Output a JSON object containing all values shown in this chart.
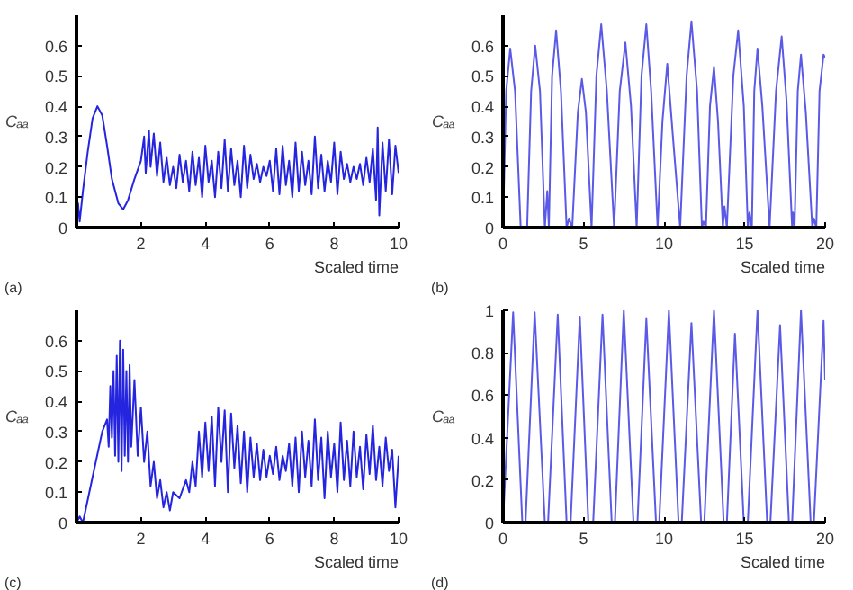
{
  "chart_data": [
    {
      "type": "line",
      "xlabel": "Scaled time",
      "ylabel": "Cₐₐ",
      "annotations": [
        "(a)"
      ],
      "xlim": [
        0,
        10
      ],
      "ylim": [
        0,
        0.7
      ],
      "xticks": [
        2,
        4,
        6,
        8,
        10
      ],
      "yticks": [
        0,
        0.1,
        0.2,
        0.3,
        0.4,
        0.5,
        0.6
      ],
      "grid": false,
      "x": [
        0,
        0.05,
        0.1,
        0.2,
        0.35,
        0.5,
        0.65,
        0.8,
        0.95,
        1.1,
        1.3,
        1.45,
        1.6,
        1.8,
        2.0,
        2.1,
        2.15,
        2.25,
        2.3,
        2.4,
        2.5,
        2.6,
        2.7,
        2.8,
        2.9,
        3.0,
        3.1,
        3.2,
        3.3,
        3.4,
        3.5,
        3.6,
        3.7,
        3.8,
        3.9,
        4.0,
        4.1,
        4.2,
        4.3,
        4.4,
        4.5,
        4.6,
        4.7,
        4.8,
        4.9,
        5.0,
        5.1,
        5.2,
        5.3,
        5.4,
        5.5,
        5.6,
        5.7,
        5.8,
        5.9,
        6.0,
        6.1,
        6.2,
        6.3,
        6.4,
        6.5,
        6.6,
        6.7,
        6.8,
        6.9,
        7.0,
        7.1,
        7.2,
        7.3,
        7.4,
        7.5,
        7.6,
        7.7,
        7.8,
        7.9,
        8.0,
        8.1,
        8.2,
        8.3,
        8.4,
        8.5,
        8.6,
        8.7,
        8.8,
        8.9,
        9.0,
        9.1,
        9.2,
        9.3,
        9.35,
        9.4,
        9.5,
        9.6,
        9.7,
        9.8,
        9.9,
        10.0
      ],
      "series": [
        {
          "color": "#2525e0",
          "values": [
            0,
            0.08,
            0.02,
            0.12,
            0.25,
            0.36,
            0.4,
            0.37,
            0.27,
            0.16,
            0.08,
            0.06,
            0.09,
            0.16,
            0.22,
            0.3,
            0.18,
            0.32,
            0.2,
            0.31,
            0.17,
            0.28,
            0.15,
            0.23,
            0.14,
            0.2,
            0.13,
            0.24,
            0.15,
            0.22,
            0.12,
            0.25,
            0.14,
            0.23,
            0.1,
            0.27,
            0.15,
            0.22,
            0.1,
            0.25,
            0.13,
            0.29,
            0.12,
            0.26,
            0.14,
            0.22,
            0.1,
            0.27,
            0.13,
            0.24,
            0.16,
            0.21,
            0.15,
            0.2,
            0.17,
            0.22,
            0.12,
            0.26,
            0.11,
            0.27,
            0.14,
            0.22,
            0.1,
            0.28,
            0.12,
            0.25,
            0.14,
            0.22,
            0.11,
            0.3,
            0.13,
            0.24,
            0.12,
            0.22,
            0.15,
            0.28,
            0.11,
            0.25,
            0.16,
            0.21,
            0.15,
            0.2,
            0.16,
            0.21,
            0.14,
            0.23,
            0.15,
            0.26,
            0.09,
            0.33,
            0.04,
            0.28,
            0.12,
            0.29,
            0.11,
            0.27,
            0.18
          ]
        }
      ]
    },
    {
      "type": "line",
      "xlabel": "Scaled time",
      "ylabel": "Cₐₐ",
      "annotations": [
        "(b)"
      ],
      "xlim": [
        0,
        20
      ],
      "ylim": [
        0,
        0.7
      ],
      "xticks": [
        0,
        5,
        10,
        15,
        20
      ],
      "yticks": [
        0,
        0.1,
        0.2,
        0.3,
        0.4,
        0.5,
        0.6
      ],
      "grid": false,
      "x": [
        0,
        0.2,
        0.45,
        0.75,
        1.1,
        1.5,
        1.75,
        2.0,
        2.3,
        2.6,
        2.75,
        2.85,
        3.05,
        3.3,
        3.6,
        3.95,
        4.1,
        4.3,
        4.65,
        4.9,
        5.15,
        5.5,
        5.8,
        6.1,
        6.45,
        6.9,
        7.25,
        7.6,
        7.95,
        8.3,
        8.6,
        8.9,
        9.2,
        9.6,
        9.9,
        10.2,
        10.55,
        11.0,
        11.4,
        11.7,
        12.05,
        12.35,
        12.45,
        12.6,
        12.85,
        13.1,
        13.35,
        13.65,
        13.75,
        13.9,
        14.3,
        14.6,
        14.95,
        15.2,
        15.3,
        15.45,
        15.6,
        15.8,
        16.1,
        16.55,
        16.95,
        17.3,
        17.6,
        17.95,
        18.0,
        18.1,
        18.3,
        18.5,
        18.8,
        19.2,
        19.3,
        19.45,
        19.65,
        19.9,
        20
      ],
      "series": [
        {
          "color": "#5a5ae6",
          "values": [
            0,
            0.45,
            0.59,
            0.45,
            0,
            0,
            0.45,
            0.6,
            0.45,
            0,
            0.12,
            0,
            0.5,
            0.65,
            0.45,
            0,
            0.03,
            0,
            0.38,
            0.49,
            0.38,
            0,
            0.5,
            0.67,
            0.45,
            0,
            0.45,
            0.61,
            0.4,
            0,
            0.5,
            0.67,
            0.45,
            0,
            0.35,
            0.54,
            0.3,
            0,
            0.5,
            0.68,
            0.45,
            0,
            0.02,
            0,
            0.4,
            0.53,
            0.35,
            0,
            0.07,
            0,
            0.5,
            0.65,
            0.4,
            0,
            0.05,
            0,
            0.45,
            0.59,
            0.4,
            0,
            0.45,
            0.63,
            0.42,
            0,
            0.05,
            0,
            0.45,
            0.57,
            0.38,
            0,
            0.03,
            0,
            0.45,
            0.57,
            0.56
          ]
        }
      ]
    },
    {
      "type": "line",
      "xlabel": "Scaled time",
      "ylabel": "Cₐₐ",
      "annotations": [
        "(c)"
      ],
      "xlim": [
        0,
        10
      ],
      "ylim": [
        0,
        0.7
      ],
      "xticks": [
        2,
        4,
        6,
        8,
        10
      ],
      "yticks": [
        0,
        0.1,
        0.2,
        0.3,
        0.4,
        0.5,
        0.6
      ],
      "grid": false,
      "x": [
        0,
        0.1,
        0.2,
        0.4,
        0.6,
        0.8,
        0.95,
        1.0,
        1.05,
        1.1,
        1.15,
        1.2,
        1.25,
        1.3,
        1.35,
        1.4,
        1.45,
        1.5,
        1.55,
        1.6,
        1.65,
        1.7,
        1.8,
        1.9,
        2.0,
        2.1,
        2.2,
        2.3,
        2.4,
        2.5,
        2.6,
        2.7,
        2.8,
        2.9,
        3.0,
        3.2,
        3.4,
        3.5,
        3.6,
        3.7,
        3.8,
        3.9,
        4.0,
        4.1,
        4.2,
        4.3,
        4.4,
        4.5,
        4.6,
        4.7,
        4.8,
        4.9,
        5.0,
        5.1,
        5.2,
        5.3,
        5.4,
        5.5,
        5.6,
        5.7,
        5.8,
        5.9,
        6.0,
        6.1,
        6.2,
        6.3,
        6.4,
        6.5,
        6.6,
        6.7,
        6.8,
        6.9,
        7.0,
        7.1,
        7.2,
        7.3,
        7.4,
        7.5,
        7.6,
        7.7,
        7.8,
        7.9,
        8.0,
        8.1,
        8.2,
        8.3,
        8.4,
        8.5,
        8.6,
        8.7,
        8.8,
        8.9,
        9.0,
        9.1,
        9.2,
        9.3,
        9.4,
        9.5,
        9.6,
        9.7,
        9.8,
        9.9,
        10.0
      ],
      "series": [
        {
          "color": "#2525e0",
          "values": [
            0,
            0.02,
            0,
            0.1,
            0.2,
            0.3,
            0.34,
            0.25,
            0.45,
            0.28,
            0.5,
            0.22,
            0.55,
            0.2,
            0.6,
            0.17,
            0.57,
            0.22,
            0.5,
            0.2,
            0.52,
            0.25,
            0.47,
            0.22,
            0.38,
            0.2,
            0.3,
            0.12,
            0.2,
            0.08,
            0.14,
            0.05,
            0.1,
            0.04,
            0.1,
            0.08,
            0.14,
            0.1,
            0.2,
            0.12,
            0.3,
            0.15,
            0.33,
            0.17,
            0.35,
            0.12,
            0.38,
            0.2,
            0.37,
            0.1,
            0.36,
            0.18,
            0.32,
            0.13,
            0.3,
            0.1,
            0.28,
            0.15,
            0.26,
            0.14,
            0.24,
            0.15,
            0.22,
            0.16,
            0.25,
            0.14,
            0.22,
            0.17,
            0.26,
            0.12,
            0.28,
            0.1,
            0.3,
            0.15,
            0.27,
            0.12,
            0.34,
            0.14,
            0.28,
            0.08,
            0.3,
            0.15,
            0.26,
            0.1,
            0.33,
            0.14,
            0.27,
            0.12,
            0.3,
            0.15,
            0.25,
            0.11,
            0.29,
            0.16,
            0.32,
            0.14,
            0.25,
            0.12,
            0.28,
            0.17,
            0.24,
            0.05,
            0.22
          ]
        }
      ]
    },
    {
      "type": "line",
      "xlabel": "Scaled time",
      "ylabel": "Cₐₐ",
      "annotations": [
        "(d)"
      ],
      "xlim": [
        0,
        20
      ],
      "ylim": [
        0,
        1
      ],
      "xticks": [
        0,
        5,
        10,
        15,
        20
      ],
      "yticks": [
        0,
        0.2,
        0.4,
        0.6,
        0.8,
        1
      ],
      "grid": false,
      "x": [
        0,
        0.63,
        1.2,
        1.4,
        1.97,
        2.6,
        2.8,
        3.4,
        3.95,
        4.2,
        4.77,
        5.3,
        5.6,
        6.18,
        6.75,
        6.95,
        7.5,
        8.1,
        8.35,
        8.9,
        9.5,
        9.7,
        10.3,
        10.9,
        11.1,
        11.7,
        12.3,
        12.5,
        13.1,
        13.7,
        13.9,
        14.4,
        14.95,
        15.2,
        15.8,
        16.4,
        16.6,
        17.2,
        17.75,
        17.95,
        18.5,
        19.1,
        19.3,
        19.9,
        20
      ],
      "series": [
        {
          "color": "#5a5ae6",
          "values": [
            0,
            0.99,
            0,
            0,
            0.99,
            0,
            0,
            0.98,
            0,
            0,
            0.97,
            0,
            0,
            0.98,
            0,
            0,
            1.0,
            0,
            0,
            0.96,
            0,
            0,
            1.0,
            0,
            0,
            0.94,
            0,
            0,
            1.0,
            0,
            0,
            0.89,
            0,
            0,
            1.0,
            0,
            0,
            0.93,
            0,
            0,
            1.0,
            0,
            0,
            0.95,
            0.67
          ]
        }
      ]
    }
  ]
}
